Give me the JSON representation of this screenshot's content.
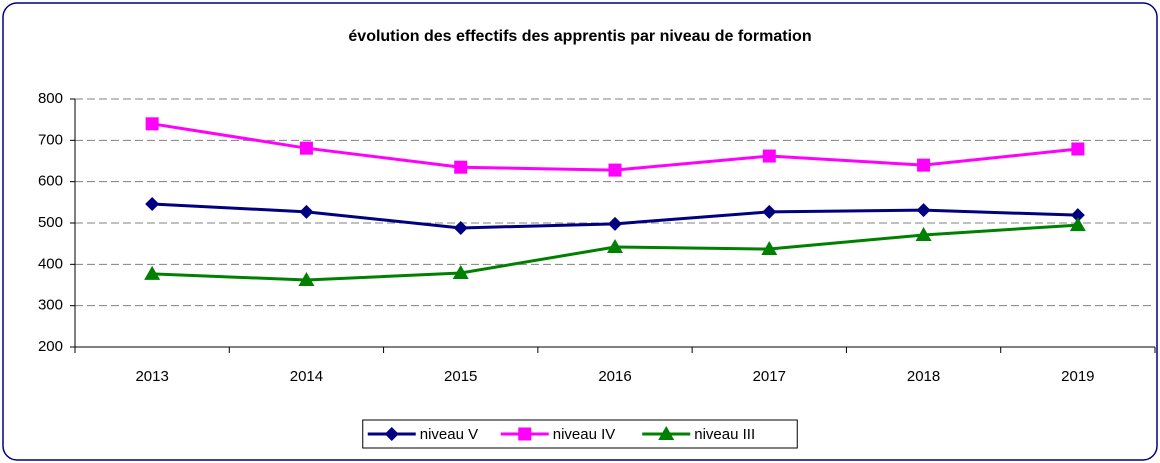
{
  "chart_data": {
    "type": "line",
    "title": "évolution des effectifs des apprentis par niveau de formation",
    "categories": [
      "2013",
      "2014",
      "2015",
      "2016",
      "2017",
      "2018",
      "2019"
    ],
    "series": [
      {
        "name": "niveau V",
        "color": "#000080",
        "marker": "diamond",
        "values": [
          546,
          527,
          488,
          498,
          527,
          531,
          519
        ]
      },
      {
        "name": "niveau IV",
        "color": "#ff00ff",
        "marker": "square",
        "values": [
          740,
          681,
          635,
          628,
          662,
          640,
          679
        ]
      },
      {
        "name": "niveau III",
        "color": "#008000",
        "marker": "triangle",
        "values": [
          377,
          362,
          379,
          442,
          437,
          471,
          495
        ]
      }
    ],
    "ylim": [
      200,
      800
    ],
    "yticks": [
      200,
      300,
      400,
      500,
      600,
      700,
      800
    ],
    "grid": true,
    "legend": "bottom"
  }
}
